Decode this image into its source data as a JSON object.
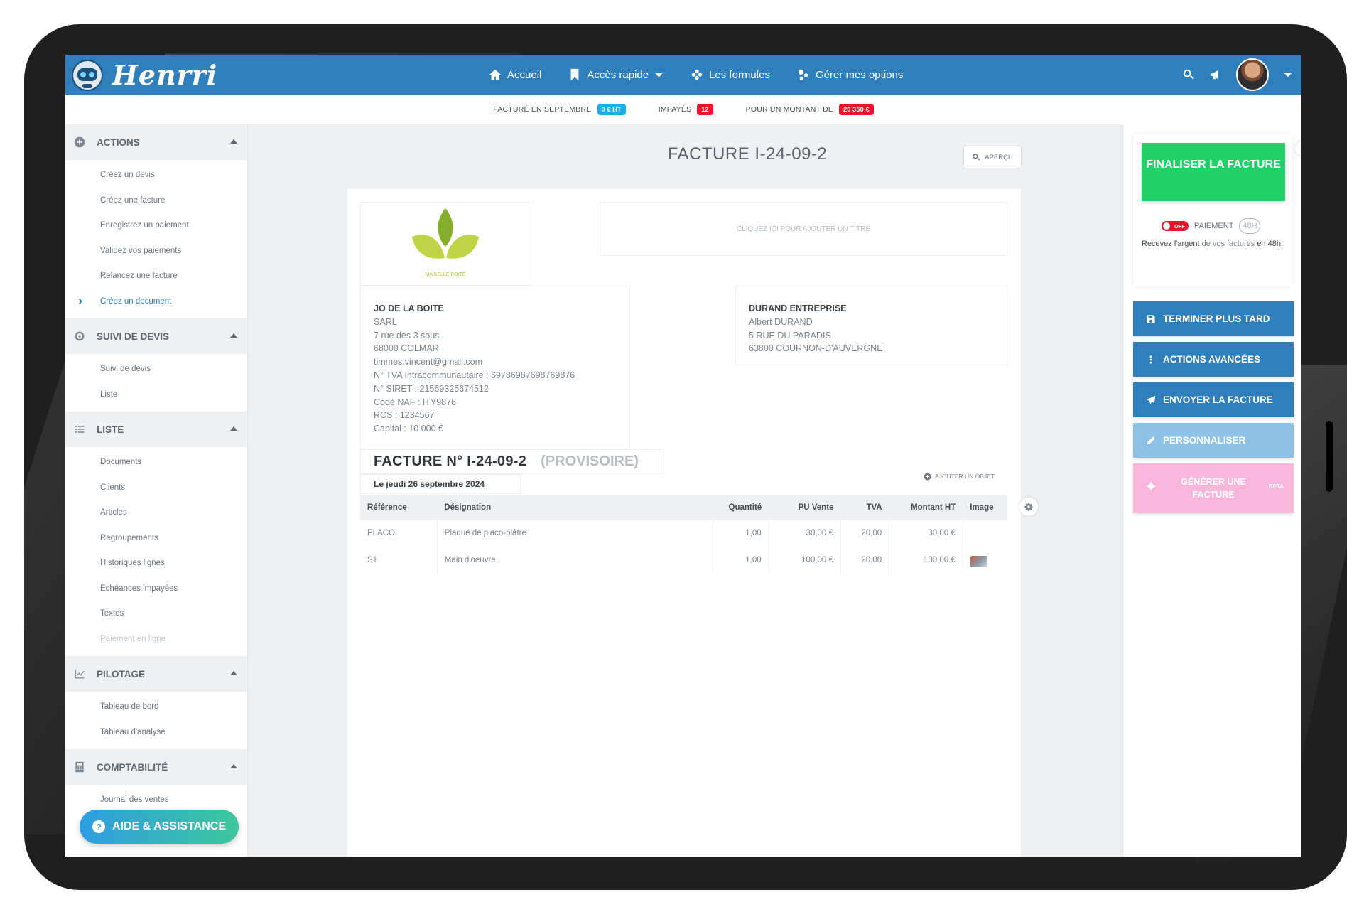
{
  "app": {
    "brand": "Henrri"
  },
  "navbar": {
    "items": [
      {
        "label": "Accueil",
        "icon": "home-icon"
      },
      {
        "label": "Accès rapide",
        "icon": "bookmark-icon",
        "dropdown": true
      },
      {
        "label": "Les formules",
        "icon": "formulas-icon"
      },
      {
        "label": "Gérer mes options",
        "icon": "options-icon"
      }
    ],
    "right_icons": [
      "search-icon",
      "megaphone-icon",
      "avatar",
      "chevron-down-icon"
    ]
  },
  "stats": {
    "billed_label": "FACTURÉ EN SEPTEMBRE",
    "billed_value": "0 € HT",
    "unpaid_label": "IMPAYÉS",
    "unpaid_value": "12",
    "amount_label": "POUR UN MONTANT DE",
    "amount_value": "20 350 €"
  },
  "sidebar": {
    "sections": [
      {
        "title": "ACTIONS",
        "icon": "plus-circle-icon",
        "items": [
          "Créez un devis",
          "Créez une facture",
          "Enregistrez un paiement",
          "Validez vos paiements",
          "Relancez une facture",
          "Créez un document"
        ]
      },
      {
        "title": "SUIVI DE DEVIS",
        "icon": "target-icon",
        "items": [
          "Suivi de devis",
          "Liste"
        ]
      },
      {
        "title": "LISTE",
        "icon": "list-icon",
        "items": [
          "Documents",
          "Clients",
          "Articles",
          "Regroupements",
          "Historiques lignes",
          "Echéances impayées",
          "Textes",
          "Paiement en ligne"
        ]
      },
      {
        "title": "PILOTAGE",
        "icon": "chart-line-icon",
        "items": [
          "Tableau de bord",
          "Tableau d'analyse"
        ]
      },
      {
        "title": "COMPTABILITÉ",
        "icon": "calculator-icon",
        "items": [
          "Journal des ventes"
        ]
      }
    ],
    "active_item": "Créez un document",
    "help_button": "AIDE & ASSISTANCE"
  },
  "document": {
    "title": "FACTURE I-24-09-2",
    "preview_button": "APERÇU",
    "logo_caption": "MA BELLE BOITE",
    "title_placeholder": "CLIQUEZ ICI POUR AJOUTER UN TITRE",
    "seller": {
      "name": "JO DE LA BOITE",
      "lines": [
        "SARL",
        "7 rue des 3 sous",
        "68000 COLMAR",
        "timmes.vincent@gmail.com",
        "N° TVA Intracommunautaire : 69786987698769876",
        "N° SIRET : 21569325674512",
        "Code NAF : ITY9876",
        "RCS : 1234567",
        "Capital : 10 000 €"
      ]
    },
    "client": {
      "name": "DURAND ENTREPRISE",
      "lines": [
        "Albert DURAND",
        "5 RUE DU PARADIS",
        "63800 COURNON-D'AUVERGNE"
      ]
    },
    "invoice_number": "FACTURE N° I-24-09-2",
    "invoice_status": "(PROVISOIRE)",
    "invoice_date": "Le jeudi 26 septembre 2024",
    "add_object": "AJOUTER UN OBJET",
    "table": {
      "headers": [
        "Référence",
        "Désignation",
        "Quantité",
        "PU Vente",
        "TVA",
        "Montant HT",
        "Image"
      ],
      "rows": [
        [
          "PLACO",
          "Plaque de placo-plâtre",
          "1,00",
          "30,00 €",
          "20,00",
          "30,00 €",
          ""
        ],
        [
          "S1",
          "Main d'oeuvre",
          "1,00",
          "100,00 €",
          "20,00",
          "100,00 €",
          "image"
        ]
      ]
    }
  },
  "right_panel": {
    "finalize": "FINALISER LA FACTURE",
    "toggle_state": "OFF",
    "payment_label": "PAIEMENT",
    "payment_badge": "48H",
    "payment_text_a": "Recevez l'argent",
    "payment_text_b": " de vos factures ",
    "payment_text_c": "en 48h.",
    "buttons": [
      "TERMINER PLUS TARD",
      "ACTIONS AVANCÉES",
      "ENVOYER LA FACTURE",
      "PERSONNALISER"
    ],
    "generate": "GÉNÉRER UNE FACTURE",
    "generate_badge": "BETA"
  },
  "colors": {
    "primary": "#2f7fbd",
    "success": "#21d068",
    "danger": "#e8142b",
    "info": "#1aaee8",
    "pink": "#f8b7da"
  }
}
